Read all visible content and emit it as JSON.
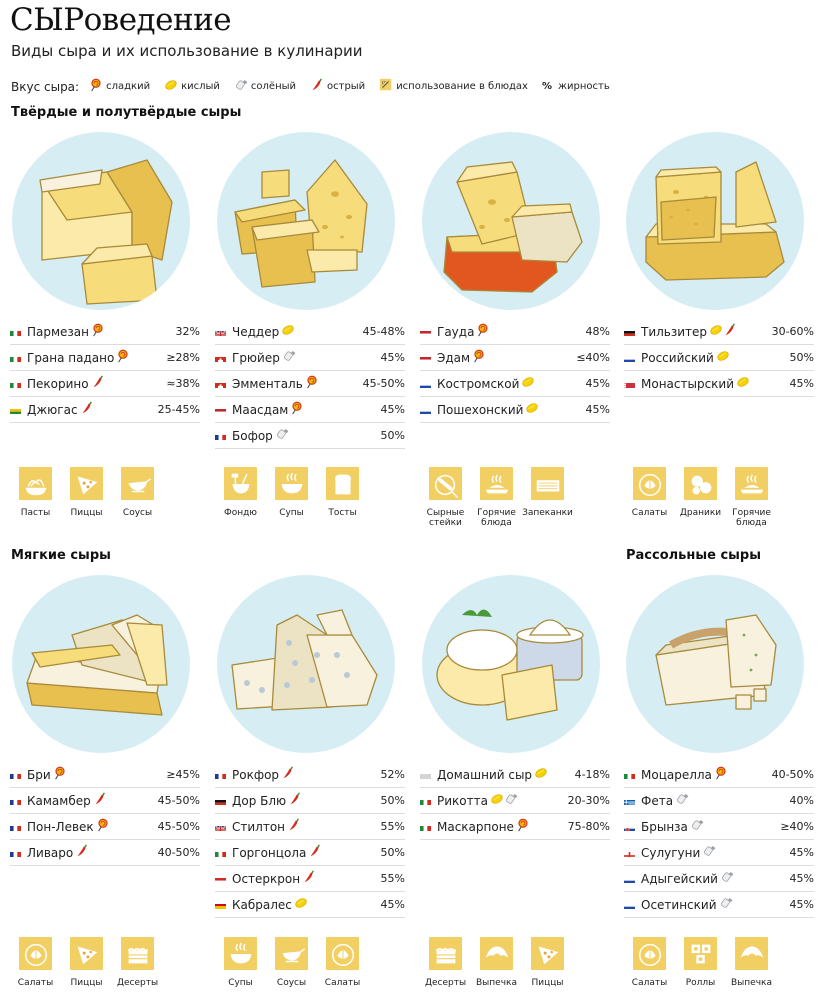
{
  "title": "СЫРоведение",
  "subtitle": "Виды сыра и их использование в кулинарии",
  "legend": {
    "lead": "Вкус сыра:",
    "items": [
      {
        "icon": "lollipop-icon",
        "label": "сладкий"
      },
      {
        "icon": "lemon-icon",
        "label": "кислый"
      },
      {
        "icon": "salt-shaker-icon",
        "label": "солёный"
      },
      {
        "icon": "chili-pepper-icon",
        "label": "острый"
      },
      {
        "icon": "dish-icon",
        "label": "использование в блюдах"
      },
      {
        "icon": "percent-icon",
        "glyph": "%",
        "label": "жирность"
      }
    ]
  },
  "colors": {
    "plate": "#d6eef3",
    "accent": "#f1cf63",
    "sweet": "#e8452c",
    "sour": "#f2c200",
    "spicy": "#d9281a",
    "salt": "#9aa0a6"
  },
  "sections": {
    "hard": "Твёрдые и полутвёрдые сыры",
    "soft": "Мягкие сыры",
    "brine": "Рассольные сыры"
  },
  "columns": [
    {
      "rows": [
        {
          "flag": "it",
          "name": "Пармезан",
          "tastes": [
            "sweet"
          ],
          "fat": "32%"
        },
        {
          "flag": "it",
          "name": "Грана падано",
          "tastes": [
            "sweet"
          ],
          "fat": "≥28%"
        },
        {
          "flag": "it",
          "name": "Пекорино",
          "tastes": [
            "spicy"
          ],
          "fat": "≈38%"
        },
        {
          "flag": "lt",
          "name": "Джюгас",
          "tastes": [
            "spicy"
          ],
          "fat": "25-45%"
        }
      ],
      "uses": [
        {
          "icon": "pasta-icon",
          "label": "Пасты"
        },
        {
          "icon": "pizza-icon",
          "label": "Пиццы"
        },
        {
          "icon": "sauce-boat-icon",
          "label": "Соусы"
        }
      ]
    },
    {
      "rows": [
        {
          "flag": "gb",
          "name": "Чеддер",
          "tastes": [
            "sour"
          ],
          "fat": "45-48%"
        },
        {
          "flag": "ch",
          "name": "Грюйер",
          "tastes": [
            "salt"
          ],
          "fat": "45%"
        },
        {
          "flag": "ch",
          "name": "Эмменталь",
          "tastes": [
            "sweet"
          ],
          "fat": "45-50%"
        },
        {
          "flag": "nl",
          "name": "Маасдам",
          "tastes": [
            "sweet"
          ],
          "fat": "45%"
        },
        {
          "flag": "fr",
          "name": "Бофор",
          "tastes": [
            "salt"
          ],
          "fat": "50%"
        }
      ],
      "uses": [
        {
          "icon": "fondue-icon",
          "label": "Фондю"
        },
        {
          "icon": "soup-bowl-icon",
          "label": "Супы"
        },
        {
          "icon": "toast-icon",
          "label": "Тосты"
        }
      ]
    },
    {
      "rows": [
        {
          "flag": "nl",
          "name": "Гауда",
          "tastes": [
            "sweet"
          ],
          "fat": "48%"
        },
        {
          "flag": "nl",
          "name": "Эдам",
          "tastes": [
            "sweet"
          ],
          "fat": "≤40%"
        },
        {
          "flag": "ru",
          "name": "Костромской",
          "tastes": [
            "sour"
          ],
          "fat": "45%"
        },
        {
          "flag": "ru",
          "name": "Пошехонский",
          "tastes": [
            "sour"
          ],
          "fat": "45%"
        }
      ],
      "uses": [
        {
          "icon": "cheese-sticks-icon",
          "label": "Сырные\nстейки"
        },
        {
          "icon": "hot-dish-icon",
          "label": "Горячие\nблюда"
        },
        {
          "icon": "casserole-icon",
          "label": "Запеканки"
        }
      ]
    },
    {
      "rows": [
        {
          "flag": "de",
          "name": "Тильзитер",
          "tastes": [
            "sour",
            "spicy"
          ],
          "fat": "30-60%"
        },
        {
          "flag": "ru",
          "name": "Российский",
          "tastes": [
            "sour"
          ],
          "fat": "50%"
        },
        {
          "flag": "by",
          "name": "Монастырский",
          "tastes": [
            "sour"
          ],
          "fat": "45%"
        }
      ],
      "uses": [
        {
          "icon": "salad-icon",
          "label": "Салаты"
        },
        {
          "icon": "pancakes-icon",
          "label": "Драники"
        },
        {
          "icon": "hot-dish-icon",
          "label": "Горячие\nблюда"
        }
      ]
    },
    {
      "rows": [
        {
          "flag": "fr",
          "name": "Бри",
          "tastes": [
            "sweet"
          ],
          "fat": "≥45%"
        },
        {
          "flag": "fr",
          "name": "Камамбер",
          "tastes": [
            "spicy"
          ],
          "fat": "45-50%"
        },
        {
          "flag": "fr",
          "name": "Пон-Левек",
          "tastes": [
            "sweet"
          ],
          "fat": "45-50%"
        },
        {
          "flag": "fr",
          "name": "Ливаро",
          "tastes": [
            "spicy"
          ],
          "fat": "40-50%"
        }
      ],
      "uses": [
        {
          "icon": "salad-icon",
          "label": "Салаты"
        },
        {
          "icon": "pizza-icon",
          "label": "Пиццы"
        },
        {
          "icon": "cake-icon",
          "label": "Десерты"
        }
      ]
    },
    {
      "rows": [
        {
          "flag": "fr",
          "name": "Рокфор",
          "tastes": [
            "spicy"
          ],
          "fat": "52%"
        },
        {
          "flag": "de",
          "name": "Дор Блю",
          "tastes": [
            "spicy"
          ],
          "fat": "50%"
        },
        {
          "flag": "gb",
          "name": "Стилтон",
          "tastes": [
            "spicy"
          ],
          "fat": "55%"
        },
        {
          "flag": "it",
          "name": "Горгонцола",
          "tastes": [
            "spicy"
          ],
          "fat": "50%"
        },
        {
          "flag": "at",
          "name": "Остеркрон",
          "tastes": [
            "spicy"
          ],
          "fat": "55%"
        },
        {
          "flag": "es",
          "name": "Кабралес",
          "tastes": [
            "sour"
          ],
          "fat": "45%"
        }
      ],
      "uses": [
        {
          "icon": "soup-bowl-icon",
          "label": "Супы"
        },
        {
          "icon": "sauce-boat-icon",
          "label": "Соусы"
        },
        {
          "icon": "salad-icon",
          "label": "Салаты"
        }
      ]
    },
    {
      "rows": [
        {
          "flag": "none",
          "name": "Домашний сыр",
          "tastes": [
            "sour"
          ],
          "fat": "4-18%"
        },
        {
          "flag": "it",
          "name": "Рикотта",
          "tastes": [
            "sour",
            "salt"
          ],
          "fat": "20-30%"
        },
        {
          "flag": "it",
          "name": "Маскарпоне",
          "tastes": [
            "sweet"
          ],
          "fat": "75-80%"
        }
      ],
      "uses": [
        {
          "icon": "cake-icon",
          "label": "Десерты"
        },
        {
          "icon": "croissant-icon",
          "label": "Выпечка"
        },
        {
          "icon": "pizza-icon",
          "label": "Пиццы"
        }
      ]
    },
    {
      "rows": [
        {
          "flag": "it",
          "name": "Моцарелла",
          "tastes": [
            "sweet"
          ],
          "fat": "40-50%"
        },
        {
          "flag": "gr",
          "name": "Фета",
          "tastes": [
            "salt"
          ],
          "fat": "40%"
        },
        {
          "flag": "sk",
          "name": "Брынза",
          "tastes": [
            "salt"
          ],
          "fat": "≥40%"
        },
        {
          "flag": "ge",
          "name": "Сулугуни",
          "tastes": [
            "salt"
          ],
          "fat": "45%"
        },
        {
          "flag": "ru",
          "name": "Адыгейский",
          "tastes": [
            "salt"
          ],
          "fat": "45%"
        },
        {
          "flag": "ru",
          "name": "Осетинский",
          "tastes": [
            "salt"
          ],
          "fat": "45%"
        }
      ],
      "uses": [
        {
          "icon": "salad-icon",
          "label": "Салаты"
        },
        {
          "icon": "rolls-icon",
          "label": "Роллы"
        },
        {
          "icon": "croissant-icon",
          "label": "Выпечка"
        }
      ]
    }
  ]
}
